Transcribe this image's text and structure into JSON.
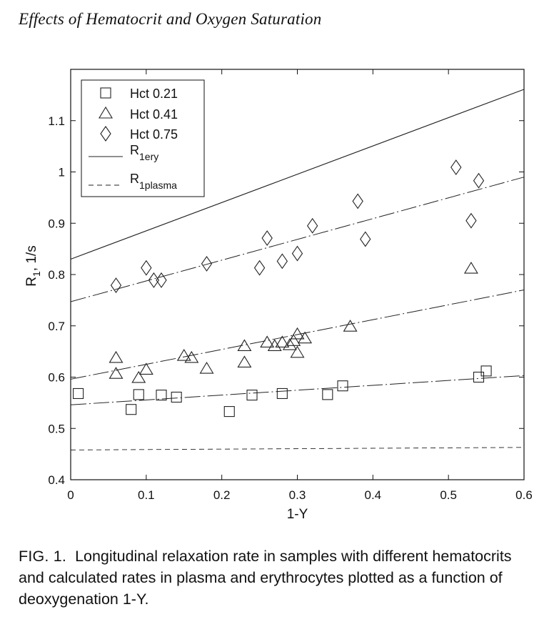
{
  "page": {
    "header_title": "Effects of Hematocrit and Oxygen Saturation",
    "caption_label": "FIG. 1.",
    "caption_text": "Longitudinal relaxation rate in samples with different hematocrits and calculated rates in plasma and erythrocytes plotted as a function of deoxygenation 1-Y."
  },
  "chart_data": {
    "type": "scatter",
    "title": "",
    "xlabel": "1-Y",
    "ylabel_main": "R",
    "ylabel_sub": "1",
    "ylabel_tail": ", 1/s",
    "xlim": [
      0,
      0.6
    ],
    "ylim": [
      0.4,
      1.2
    ],
    "xticks": [
      0,
      0.1,
      0.2,
      0.3,
      0.4,
      0.5,
      0.6
    ],
    "xtick_labels": [
      "0",
      "0.1",
      "0.2",
      "0.3",
      "0.4",
      "0.5",
      "0.6"
    ],
    "yticks": [
      0.4,
      0.5,
      0.6,
      0.7,
      0.8,
      0.9,
      1,
      1.1
    ],
    "ytick_labels": [
      "0.4",
      "0.5",
      "0.6",
      "0.7",
      "0.8",
      "0.9",
      "1",
      "1.1"
    ],
    "grid": false,
    "legend_position": "top-left",
    "series": [
      {
        "name": "Hct 0.21",
        "marker": "square",
        "points": [
          [
            0.01,
            0.568
          ],
          [
            0.08,
            0.537
          ],
          [
            0.09,
            0.566
          ],
          [
            0.12,
            0.565
          ],
          [
            0.14,
            0.561
          ],
          [
            0.21,
            0.533
          ],
          [
            0.24,
            0.565
          ],
          [
            0.28,
            0.568
          ],
          [
            0.34,
            0.566
          ],
          [
            0.36,
            0.583
          ],
          [
            0.54,
            0.6
          ],
          [
            0.55,
            0.612
          ]
        ]
      },
      {
        "name": "Hct 0.41",
        "marker": "triangle",
        "points": [
          [
            0.06,
            0.637
          ],
          [
            0.06,
            0.606
          ],
          [
            0.09,
            0.598
          ],
          [
            0.1,
            0.614
          ],
          [
            0.15,
            0.641
          ],
          [
            0.16,
            0.637
          ],
          [
            0.18,
            0.616
          ],
          [
            0.23,
            0.66
          ],
          [
            0.23,
            0.628
          ],
          [
            0.26,
            0.667
          ],
          [
            0.27,
            0.66
          ],
          [
            0.28,
            0.667
          ],
          [
            0.29,
            0.662
          ],
          [
            0.295,
            0.67
          ],
          [
            0.3,
            0.683
          ],
          [
            0.3,
            0.647
          ],
          [
            0.31,
            0.675
          ],
          [
            0.37,
            0.698
          ],
          [
            0.53,
            0.811
          ]
        ]
      },
      {
        "name": "Hct 0.75",
        "marker": "diamond",
        "points": [
          [
            0.06,
            0.779
          ],
          [
            0.1,
            0.813
          ],
          [
            0.11,
            0.789
          ],
          [
            0.12,
            0.789
          ],
          [
            0.18,
            0.821
          ],
          [
            0.25,
            0.813
          ],
          [
            0.26,
            0.871
          ],
          [
            0.28,
            0.826
          ],
          [
            0.3,
            0.841
          ],
          [
            0.32,
            0.895
          ],
          [
            0.38,
            0.943
          ],
          [
            0.39,
            0.869
          ],
          [
            0.51,
            1.009
          ],
          [
            0.53,
            0.905
          ],
          [
            0.54,
            0.983
          ]
        ]
      }
    ],
    "lines": [
      {
        "name": "R",
        "name_sub": "1ery",
        "style": "solid",
        "x": [
          0,
          0.6
        ],
        "y": [
          0.83,
          1.161
        ]
      },
      {
        "name": "R",
        "name_sub": "1plasma",
        "style": "dashed",
        "x": [
          0,
          0.6
        ],
        "y": [
          0.458,
          0.463
        ]
      },
      {
        "name": "",
        "style": "dashdot",
        "x": [
          0,
          0.6
        ],
        "y": [
          0.747,
          0.99
        ]
      },
      {
        "name": "",
        "style": "dashdot",
        "x": [
          0,
          0.6
        ],
        "y": [
          0.596,
          0.77
        ]
      },
      {
        "name": "",
        "style": "dashdot",
        "x": [
          0,
          0.6
        ],
        "y": [
          0.546,
          0.603
        ]
      }
    ],
    "legend": [
      {
        "label": "Hct 0.21",
        "marker": "square"
      },
      {
        "label": "Hct 0.41",
        "marker": "triangle"
      },
      {
        "label": "Hct 0.75",
        "marker": "diamond"
      },
      {
        "label": "R",
        "label_sub": "1ery",
        "line": "solid"
      },
      {
        "label": "R",
        "label_sub": "1plasma",
        "line": "dashed"
      }
    ]
  }
}
